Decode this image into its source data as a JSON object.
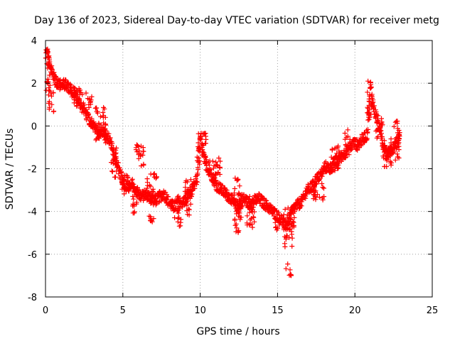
{
  "chart_data": {
    "type": "scatter",
    "title": "Day 136 of 2023, Sidereal Day-to-day VTEC variation (SDTVAR) for receiver metg",
    "xlabel": "GPS time / hours",
    "ylabel": "SDTVAR / TECUs",
    "xlim": [
      0,
      25
    ],
    "ylim": [
      -8,
      4
    ],
    "xticks": [
      0,
      5,
      10,
      15,
      20,
      25
    ],
    "yticks": [
      -8,
      -6,
      -4,
      -2,
      0,
      2,
      4
    ],
    "grid": true,
    "marker": "+",
    "color": "#ff0000",
    "series": [
      {
        "name": "SDTVAR",
        "trace_x": [
          0.0,
          0.1,
          0.2,
          0.4,
          0.6,
          0.8,
          1.0,
          1.3,
          1.6,
          1.9,
          2.2,
          2.5,
          2.8,
          3.1,
          3.4,
          3.7,
          4.0,
          4.2,
          4.4,
          4.6,
          4.8,
          5.0,
          5.3,
          5.6,
          5.9,
          6.2,
          6.5,
          6.8,
          7.1,
          7.4,
          7.7,
          8.0,
          8.3,
          8.6,
          8.9,
          9.2,
          9.5,
          9.8,
          10.0,
          10.2,
          10.5,
          10.8,
          11.1,
          11.4,
          11.7,
          12.0,
          12.3,
          12.6,
          12.9,
          13.2,
          13.5,
          13.8,
          14.1,
          14.4,
          14.7,
          15.0,
          15.3,
          15.5,
          15.7,
          16.0,
          16.3,
          16.6,
          16.9,
          17.2,
          17.5,
          17.8,
          18.1,
          18.4,
          18.7,
          19.0,
          19.3,
          19.6,
          19.9,
          20.2,
          20.5,
          20.8,
          21.0,
          21.2,
          21.5,
          21.8,
          22.1,
          22.4,
          22.7,
          22.9
        ],
        "trace_y": [
          3.2,
          3.5,
          3.0,
          2.6,
          2.2,
          2.0,
          1.9,
          2.0,
          1.7,
          1.5,
          1.0,
          0.8,
          0.3,
          0.0,
          -0.3,
          -0.2,
          -0.5,
          -0.8,
          -1.2,
          -1.7,
          -2.2,
          -2.6,
          -2.9,
          -2.7,
          -3.1,
          -3.3,
          -3.2,
          -3.4,
          -3.5,
          -3.3,
          -3.2,
          -3.6,
          -3.8,
          -3.5,
          -3.6,
          -3.2,
          -3.0,
          -2.5,
          -0.5,
          -1.4,
          -2.0,
          -2.4,
          -2.8,
          -3.0,
          -3.2,
          -3.4,
          -3.8,
          -3.6,
          -3.4,
          -3.7,
          -3.5,
          -3.4,
          -3.6,
          -3.8,
          -4.0,
          -4.2,
          -4.4,
          -4.7,
          -4.5,
          -3.9,
          -3.7,
          -3.5,
          -3.0,
          -2.9,
          -2.5,
          -2.3,
          -1.9,
          -2.0,
          -1.7,
          -1.5,
          -1.3,
          -1.1,
          -0.8,
          -0.9,
          -0.6,
          -0.4,
          2.0,
          0.9,
          0.2,
          -0.8,
          -1.3,
          -1.1,
          -0.8,
          -0.5
        ],
        "clusters": [
          {
            "x": [
              0.0,
              0.3
            ],
            "y": [
              1.6,
              3.7
            ]
          },
          {
            "x": [
              0.2,
              0.6
            ],
            "y": [
              0.6,
              1.8
            ]
          },
          {
            "x": [
              1.8,
              2.4
            ],
            "y": [
              0.8,
              1.8
            ]
          },
          {
            "x": [
              2.6,
              3.0
            ],
            "y": [
              0.8,
              1.6
            ]
          },
          {
            "x": [
              3.2,
              3.9
            ],
            "y": [
              -0.8,
              0.9
            ]
          },
          {
            "x": [
              4.2,
              4.6
            ],
            "y": [
              -2.5,
              -1.0
            ]
          },
          {
            "x": [
              4.8,
              5.4
            ],
            "y": [
              -3.2,
              -2.3
            ]
          },
          {
            "x": [
              5.6,
              6.1
            ],
            "y": [
              -4.2,
              -2.8
            ]
          },
          {
            "x": [
              5.8,
              6.4
            ],
            "y": [
              -1.9,
              -0.8
            ]
          },
          {
            "x": [
              6.5,
              7.2
            ],
            "y": [
              -3.6,
              -2.2
            ]
          },
          {
            "x": [
              6.7,
              7.0
            ],
            "y": [
              -4.6,
              -4.2
            ]
          },
          {
            "x": [
              8.3,
              8.8
            ],
            "y": [
              -4.7,
              -3.8
            ]
          },
          {
            "x": [
              9.0,
              9.5
            ],
            "y": [
              -4.2,
              -2.5
            ]
          },
          {
            "x": [
              9.8,
              10.4
            ],
            "y": [
              -1.8,
              -0.3
            ]
          },
          {
            "x": [
              10.5,
              11.3
            ],
            "y": [
              -2.5,
              -1.5
            ]
          },
          {
            "x": [
              12.2,
              12.8
            ],
            "y": [
              -4.4,
              -2.4
            ]
          },
          {
            "x": [
              12.2,
              12.5
            ],
            "y": [
              -5.0,
              -4.4
            ]
          },
          {
            "x": [
              13.0,
              13.5
            ],
            "y": [
              -4.9,
              -3.2
            ]
          },
          {
            "x": [
              14.8,
              15.2
            ],
            "y": [
              -5.0,
              -4.3
            ]
          },
          {
            "x": [
              15.4,
              16.1
            ],
            "y": [
              -5.7,
              -3.8
            ]
          },
          {
            "x": [
              15.5,
              15.9
            ],
            "y": [
              -7.0,
              -6.4
            ]
          },
          {
            "x": [
              17.2,
              18.0
            ],
            "y": [
              -3.5,
              -2.5
            ]
          },
          {
            "x": [
              18.4,
              19.0
            ],
            "y": [
              -2.2,
              -0.9
            ]
          },
          {
            "x": [
              19.3,
              19.7
            ],
            "y": [
              -1.2,
              0.0
            ]
          },
          {
            "x": [
              20.8,
              21.1
            ],
            "y": [
              0.2,
              2.2
            ]
          },
          {
            "x": [
              21.3,
              21.8
            ],
            "y": [
              -0.6,
              0.4
            ]
          },
          {
            "x": [
              21.8,
              22.4
            ],
            "y": [
              -2.0,
              -0.6
            ]
          },
          {
            "x": [
              22.5,
              22.9
            ],
            "y": [
              -1.6,
              0.3
            ]
          }
        ]
      }
    ]
  }
}
